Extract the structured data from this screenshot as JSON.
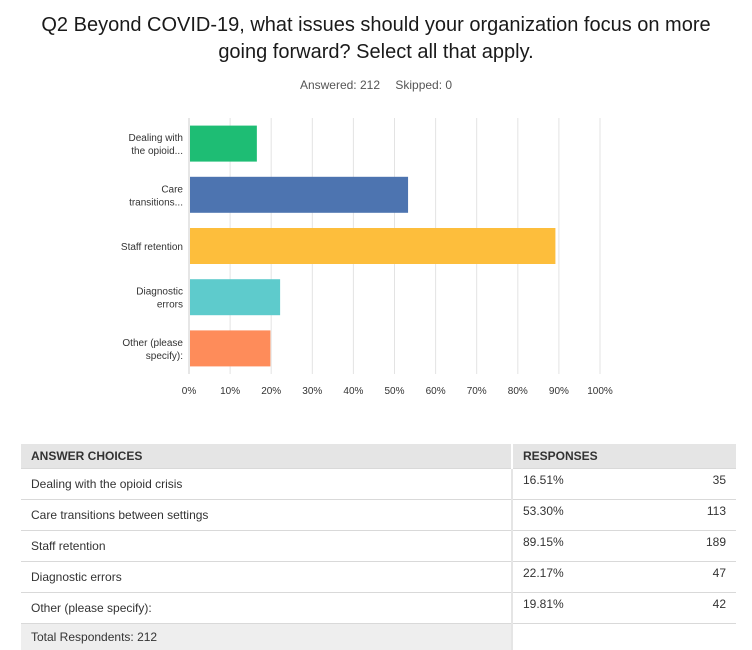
{
  "header": {
    "title": "Q2 Beyond COVID-19, what issues should your organization focus on more going forward? Select all that apply.",
    "answered_label": "Answered: 212",
    "skipped_label": "Skipped: 0"
  },
  "chart_data": {
    "type": "bar",
    "orientation": "horizontal",
    "categories": [
      [
        "Dealing with",
        "the opioid..."
      ],
      [
        "Care",
        "transitions..."
      ],
      [
        "Staff retention"
      ],
      [
        "Diagnostic",
        "errors"
      ],
      [
        "Other (please",
        "specify):"
      ]
    ],
    "values": [
      16.51,
      53.3,
      89.15,
      22.17,
      19.81
    ],
    "colors": [
      "#1ebd74",
      "#4d74b0",
      "#fdbe3c",
      "#5ecbcc",
      "#fe8c5a"
    ],
    "xlim": [
      0,
      100
    ],
    "xticks": [
      "0%",
      "10%",
      "20%",
      "30%",
      "40%",
      "50%",
      "60%",
      "70%",
      "80%",
      "90%",
      "100%"
    ],
    "grid": true
  },
  "table": {
    "headers": [
      "ANSWER CHOICES",
      "RESPONSES"
    ],
    "rows": [
      {
        "choice": "Dealing with the opioid crisis",
        "percent": "16.51%",
        "count": "35"
      },
      {
        "choice": "Care transitions between settings",
        "percent": "53.30%",
        "count": "113"
      },
      {
        "choice": "Staff retention",
        "percent": "89.15%",
        "count": "189"
      },
      {
        "choice": "Diagnostic errors",
        "percent": "22.17%",
        "count": "47"
      },
      {
        "choice": "Other (please specify):",
        "percent": "19.81%",
        "count": "42"
      }
    ],
    "total_label": "Total Respondents: 212"
  }
}
